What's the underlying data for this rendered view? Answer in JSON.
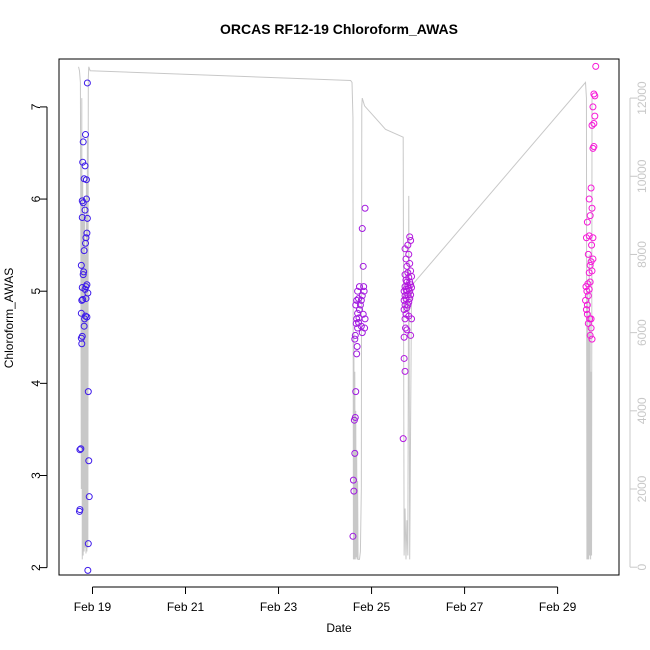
{
  "chart_data": {
    "type": "scatter",
    "title": "ORCAS RF12-19 Chloroform_AWAS",
    "xlabel": "Date",
    "ylabel": "Chloroform_AWAS",
    "x_ticks": [
      "Feb 19",
      "Feb 21",
      "Feb 23",
      "Feb 25",
      "Feb 27",
      "Feb 29"
    ],
    "x_tick_days": [
      19,
      21,
      23,
      25,
      27,
      29
    ],
    "xlim_days": [
      18.28,
      30.32
    ],
    "ylim": [
      1.92,
      7.52
    ],
    "y_ticks": [
      2,
      3,
      4,
      5,
      6,
      7
    ],
    "ylim_right": [
      -200,
      13000
    ],
    "y_ticks_right": [
      0,
      2000,
      4000,
      6000,
      8000,
      10000,
      12000
    ],
    "grid": false,
    "right_axis_series": "altitude trace (grey line)",
    "colors": {
      "line": "#c8c8c8",
      "point_start": "#3a1aea",
      "point_end": "#f81ad8"
    },
    "series": [
      {
        "points": [
          [
            18.72,
            2.61
          ],
          [
            18.73,
            2.63
          ],
          [
            18.73,
            3.28
          ],
          [
            18.75,
            3.29
          ],
          [
            18.76,
            4.49
          ],
          [
            18.77,
            4.43
          ],
          [
            18.78,
            4.51
          ],
          [
            18.76,
            4.76
          ],
          [
            18.77,
            4.9
          ],
          [
            18.79,
            4.91
          ],
          [
            18.78,
            5.04
          ],
          [
            18.76,
            5.28
          ],
          [
            18.81,
            5.21
          ],
          [
            18.8,
            5.18
          ],
          [
            18.82,
            5.44
          ],
          [
            18.78,
            5.8
          ],
          [
            18.78,
            5.98
          ],
          [
            18.8,
            5.96
          ],
          [
            18.79,
            6.4
          ],
          [
            18.82,
            6.22
          ],
          [
            18.8,
            6.62
          ],
          [
            18.84,
            5.88
          ],
          [
            18.86,
            5.58
          ],
          [
            18.85,
            5.52
          ],
          [
            18.88,
            5.63
          ],
          [
            18.84,
            5.02
          ],
          [
            18.86,
            5.05
          ],
          [
            18.88,
            5.07
          ],
          [
            18.85,
            4.73
          ],
          [
            18.88,
            4.72
          ],
          [
            18.9,
            4.98
          ],
          [
            18.86,
            4.92
          ],
          [
            18.83,
            4.7
          ],
          [
            18.82,
            4.62
          ],
          [
            18.84,
            6.36
          ],
          [
            18.87,
            6.21
          ],
          [
            18.85,
            6.7
          ],
          [
            18.87,
            6.0
          ],
          [
            18.89,
            5.79
          ],
          [
            18.91,
            3.91
          ],
          [
            18.92,
            3.16
          ],
          [
            18.93,
            2.77
          ],
          [
            18.91,
            2.26
          ],
          [
            18.9,
            1.97
          ],
          [
            18.89,
            7.26
          ],
          [
            24.6,
            2.34
          ],
          [
            24.62,
            2.83
          ],
          [
            24.61,
            2.95
          ],
          [
            24.64,
            3.24
          ],
          [
            24.63,
            3.6
          ],
          [
            24.65,
            3.63
          ],
          [
            24.66,
            3.91
          ],
          [
            24.64,
            4.48
          ],
          [
            24.68,
            4.32
          ],
          [
            24.69,
            4.4
          ],
          [
            24.65,
            4.52
          ],
          [
            24.7,
            4.6
          ],
          [
            24.67,
            4.65
          ],
          [
            24.72,
            4.66
          ],
          [
            24.68,
            4.7
          ],
          [
            24.73,
            4.71
          ],
          [
            24.7,
            4.76
          ],
          [
            24.74,
            4.8
          ],
          [
            24.66,
            4.85
          ],
          [
            24.76,
            4.85
          ],
          [
            24.68,
            4.9
          ],
          [
            24.78,
            4.9
          ],
          [
            24.72,
            4.92
          ],
          [
            24.8,
            4.95
          ],
          [
            24.7,
            5.0
          ],
          [
            24.84,
            5.0
          ],
          [
            24.74,
            5.05
          ],
          [
            24.82,
            4.75
          ],
          [
            24.85,
            4.6
          ],
          [
            24.8,
            4.55
          ],
          [
            24.86,
            4.7
          ],
          [
            24.78,
            4.62
          ],
          [
            24.83,
            5.05
          ],
          [
            24.82,
            5.27
          ],
          [
            24.8,
            5.68
          ],
          [
            24.86,
            5.9
          ],
          [
            25.68,
            3.4
          ],
          [
            25.7,
            4.27
          ],
          [
            25.72,
            4.13
          ],
          [
            25.7,
            4.5
          ],
          [
            25.73,
            4.6
          ],
          [
            25.72,
            4.7
          ],
          [
            25.74,
            4.75
          ],
          [
            25.7,
            4.8
          ],
          [
            25.76,
            4.82
          ],
          [
            25.72,
            4.85
          ],
          [
            25.78,
            4.85
          ],
          [
            25.7,
            4.9
          ],
          [
            25.8,
            4.88
          ],
          [
            25.74,
            4.92
          ],
          [
            25.82,
            4.92
          ],
          [
            25.72,
            4.95
          ],
          [
            25.78,
            4.96
          ],
          [
            25.84,
            4.96
          ],
          [
            25.7,
            5.0
          ],
          [
            25.76,
            5.0
          ],
          [
            25.82,
            5.0
          ],
          [
            25.74,
            5.02
          ],
          [
            25.8,
            5.03
          ],
          [
            25.86,
            5.04
          ],
          [
            25.72,
            5.05
          ],
          [
            25.78,
            5.06
          ],
          [
            25.84,
            5.07
          ],
          [
            25.76,
            5.1
          ],
          [
            25.82,
            5.1
          ],
          [
            25.74,
            5.12
          ],
          [
            25.8,
            5.15
          ],
          [
            25.86,
            5.16
          ],
          [
            25.72,
            5.18
          ],
          [
            25.78,
            5.2
          ],
          [
            25.84,
            5.22
          ],
          [
            25.76,
            5.27
          ],
          [
            25.82,
            5.3
          ],
          [
            25.74,
            5.35
          ],
          [
            25.8,
            5.4
          ],
          [
            25.72,
            5.46
          ],
          [
            25.78,
            5.5
          ],
          [
            25.84,
            5.55
          ],
          [
            25.82,
            5.59
          ],
          [
            25.8,
            4.73
          ],
          [
            25.76,
            4.58
          ],
          [
            25.84,
            4.52
          ],
          [
            25.86,
            4.7
          ],
          [
            29.62,
            4.8
          ],
          [
            29.64,
            4.85
          ],
          [
            29.6,
            4.9
          ],
          [
            29.66,
            4.95
          ],
          [
            29.63,
            5.0
          ],
          [
            29.68,
            5.02
          ],
          [
            29.61,
            5.05
          ],
          [
            29.65,
            5.08
          ],
          [
            29.7,
            5.1
          ],
          [
            29.64,
            4.75
          ],
          [
            29.69,
            4.7
          ],
          [
            29.66,
            4.65
          ],
          [
            29.72,
            4.6
          ],
          [
            29.7,
            4.52
          ],
          [
            29.74,
            4.48
          ],
          [
            29.72,
            4.7
          ],
          [
            29.68,
            5.2
          ],
          [
            29.74,
            5.22
          ],
          [
            29.7,
            5.28
          ],
          [
            29.72,
            5.32
          ],
          [
            29.76,
            5.35
          ],
          [
            29.66,
            5.4
          ],
          [
            29.73,
            5.5
          ],
          [
            29.62,
            5.58
          ],
          [
            29.68,
            5.6
          ],
          [
            29.76,
            5.58
          ],
          [
            29.64,
            5.75
          ],
          [
            29.7,
            5.82
          ],
          [
            29.74,
            5.9
          ],
          [
            29.68,
            6.0
          ],
          [
            29.72,
            6.12
          ],
          [
            29.76,
            6.55
          ],
          [
            29.78,
            6.57
          ],
          [
            29.74,
            6.8
          ],
          [
            29.78,
            6.82
          ],
          [
            29.8,
            6.9
          ],
          [
            29.76,
            7.0
          ],
          [
            29.8,
            7.12
          ],
          [
            29.78,
            7.14
          ],
          [
            29.82,
            7.44
          ]
        ]
      }
    ],
    "line_trace": [
      [
        18.7,
        12800
      ],
      [
        18.72,
        12700
      ],
      [
        18.74,
        12400
      ],
      [
        18.75,
        8000
      ],
      [
        18.76,
        2000
      ],
      [
        18.77,
        12000
      ],
      [
        18.78,
        200
      ],
      [
        18.79,
        10000
      ],
      [
        18.8,
        300
      ],
      [
        18.81,
        9000
      ],
      [
        18.82,
        400
      ],
      [
        18.83,
        9500
      ],
      [
        18.84,
        500
      ],
      [
        18.85,
        8000
      ],
      [
        18.86,
        350
      ],
      [
        18.87,
        10000
      ],
      [
        18.88,
        400
      ],
      [
        18.89,
        11000
      ],
      [
        18.9,
        500
      ],
      [
        18.91,
        12500
      ],
      [
        18.92,
        12800
      ],
      [
        18.95,
        12700
      ],
      [
        24.55,
        12450
      ],
      [
        24.58,
        12400
      ],
      [
        24.6,
        11500
      ],
      [
        24.61,
        200
      ],
      [
        24.62,
        6000
      ],
      [
        24.63,
        200
      ],
      [
        24.64,
        5000
      ],
      [
        24.65,
        200
      ],
      [
        24.66,
        4000
      ],
      [
        24.67,
        250
      ],
      [
        24.68,
        3000
      ],
      [
        24.69,
        200
      ],
      [
        24.7,
        2200
      ],
      [
        24.71,
        200
      ],
      [
        24.74,
        200
      ],
      [
        24.76,
        400
      ],
      [
        24.78,
        2000
      ],
      [
        24.79,
        11800
      ],
      [
        24.8,
        12000
      ],
      [
        24.85,
        11800
      ],
      [
        25.3,
        11200
      ],
      [
        25.68,
        11000
      ],
      [
        25.7,
        300
      ],
      [
        25.72,
        1500
      ],
      [
        25.74,
        200
      ],
      [
        25.76,
        1200
      ],
      [
        25.78,
        300
      ],
      [
        25.8,
        9500
      ],
      [
        25.82,
        200
      ],
      [
        25.86,
        7200
      ],
      [
        29.6,
        12400
      ],
      [
        29.62,
        12000
      ],
      [
        29.63,
        200
      ],
      [
        29.64,
        7000
      ],
      [
        29.65,
        200
      ],
      [
        29.66,
        6000
      ],
      [
        29.67,
        200
      ],
      [
        29.68,
        8000
      ],
      [
        29.69,
        300
      ],
      [
        29.7,
        6500
      ],
      [
        29.71,
        200
      ],
      [
        29.72,
        5000
      ],
      [
        29.73,
        300
      ],
      [
        29.74,
        12000
      ]
    ]
  }
}
